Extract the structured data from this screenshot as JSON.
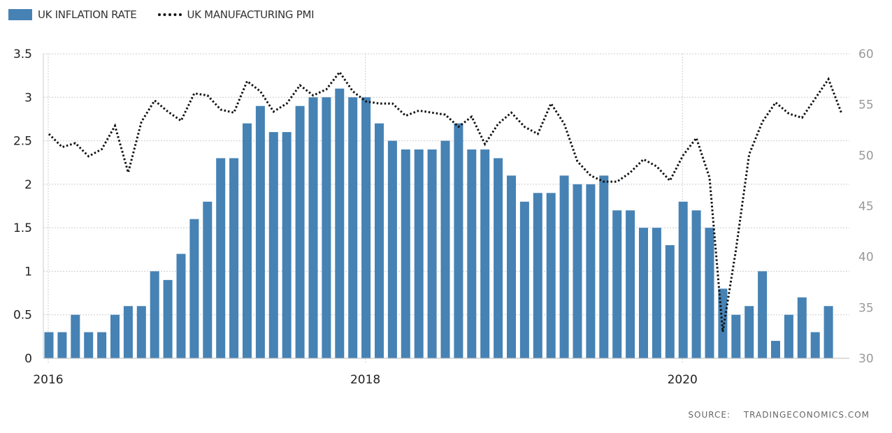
{
  "legend": {
    "bars_label": "UK INFLATION RATE",
    "line_label": "UK MANUFACTURING PMI"
  },
  "source": {
    "label": "SOURCE:",
    "site": "TRADINGECONOMICS.COM"
  },
  "colors": {
    "bar": "#4682b4",
    "line": "#111111",
    "grid": "#cccccc",
    "axis_text_left": "#222222",
    "axis_text_right": "#999999"
  },
  "chart_data": {
    "type": "bar",
    "title": "",
    "xlabel": "",
    "ylabel": "",
    "x_ticks": [
      {
        "label": "2016",
        "month_index": 0
      },
      {
        "label": "2018",
        "month_index": 24
      },
      {
        "label": "2020",
        "month_index": 48
      }
    ],
    "y_left": {
      "range": [
        0,
        3.5
      ],
      "ticks": [
        "0",
        "0.5",
        "1",
        "1.5",
        "2",
        "2.5",
        "3",
        "3.5"
      ],
      "tick_values": [
        0,
        0.5,
        1,
        1.5,
        2,
        2.5,
        3,
        3.5
      ]
    },
    "y_right": {
      "range": [
        30,
        60
      ],
      "ticks": [
        "30",
        "35",
        "40",
        "45",
        "50",
        "55",
        "60"
      ],
      "tick_values": [
        30,
        35,
        40,
        45,
        50,
        55,
        60
      ]
    },
    "series": [
      {
        "name": "UK INFLATION RATE",
        "kind": "bar",
        "axis": "left",
        "start": "2016-01",
        "values": [
          0.3,
          0.3,
          0.5,
          0.3,
          0.3,
          0.5,
          0.6,
          0.6,
          1.0,
          0.9,
          1.2,
          1.6,
          1.8,
          2.3,
          2.3,
          2.7,
          2.9,
          2.6,
          2.6,
          2.9,
          3.0,
          3.0,
          3.1,
          3.0,
          3.0,
          2.7,
          2.5,
          2.4,
          2.4,
          2.4,
          2.5,
          2.7,
          2.4,
          2.4,
          2.3,
          2.1,
          1.8,
          1.9,
          1.9,
          2.1,
          2.0,
          2.0,
          2.1,
          1.7,
          1.7,
          1.5,
          1.5,
          1.3,
          1.8,
          1.7,
          1.5,
          0.8,
          0.5,
          0.6,
          1.0,
          0.2,
          0.5,
          0.7,
          0.3,
          0.6
        ]
      },
      {
        "name": "UK MANUFACTURING PMI",
        "kind": "line",
        "axis": "right",
        "start": "2016-01",
        "values": [
          52.1,
          50.8,
          51.2,
          49.9,
          50.6,
          52.9,
          48.3,
          53.3,
          55.4,
          54.3,
          53.4,
          56.1,
          55.9,
          54.5,
          54.2,
          57.3,
          56.3,
          54.3,
          55.1,
          56.9,
          55.9,
          56.5,
          58.2,
          56.3,
          55.3,
          55.1,
          55.1,
          53.9,
          54.4,
          54.2,
          54.0,
          52.8,
          53.8,
          51.1,
          53.1,
          54.2,
          52.8,
          52.1,
          55.1,
          53.1,
          49.4,
          48.0,
          47.4,
          47.4,
          48.3,
          49.6,
          48.9,
          47.5,
          50.0,
          51.7,
          47.8,
          32.6,
          40.7,
          50.1,
          53.3,
          55.2,
          54.1,
          53.7,
          55.6,
          57.5,
          54.1
        ]
      }
    ]
  }
}
